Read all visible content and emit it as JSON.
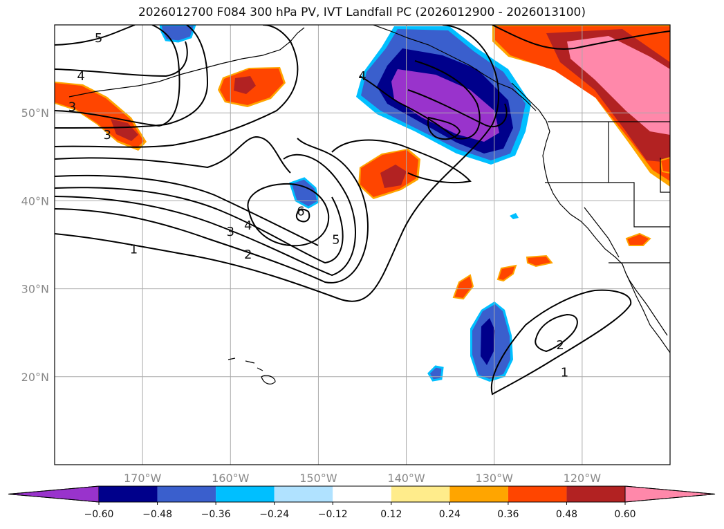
{
  "chart_data": {
    "type": "heatmap",
    "title": "2026012700 F084 300 hPa PV, IVT Landfall PC (2026012900 - 2026013100)",
    "projection": "lat-lon map, North Pacific",
    "xlim": [
      -180,
      -110
    ],
    "ylim": [
      10,
      60
    ],
    "x_ticks": [
      -170,
      -160,
      -150,
      -140,
      -130,
      -120
    ],
    "x_tick_labels": [
      "170°W",
      "160°W",
      "150°W",
      "140°W",
      "130°W",
      "120°W"
    ],
    "y_ticks": [
      20,
      30,
      40,
      50
    ],
    "y_tick_labels": [
      "20°N",
      "30°N",
      "40°N",
      "50°N"
    ],
    "grid": true,
    "contour_field": "300 hPa PV",
    "contour_labels": [
      {
        "text": "5",
        "lon": -175,
        "lat": 58.5
      },
      {
        "text": "4",
        "lon": -177,
        "lat": 54.2
      },
      {
        "text": "3",
        "lon": -178,
        "lat": 50.7
      },
      {
        "text": "3",
        "lon": -174,
        "lat": 47.5
      },
      {
        "text": "4",
        "lon": -145,
        "lat": 54.2
      },
      {
        "text": "6",
        "lon": -152,
        "lat": 38.8
      },
      {
        "text": "5",
        "lon": -148,
        "lat": 35.6
      },
      {
        "text": "4",
        "lon": -158,
        "lat": 37.2
      },
      {
        "text": "3",
        "lon": -160,
        "lat": 36.5
      },
      {
        "text": "2",
        "lon": -158,
        "lat": 33.9
      },
      {
        "text": "1",
        "lon": -171,
        "lat": 34.5
      },
      {
        "text": "2",
        "lon": -122.5,
        "lat": 23.6
      },
      {
        "text": "1",
        "lon": -122,
        "lat": 20.5
      }
    ],
    "shaded_field": "IVT landfall PC",
    "colorbar": {
      "boundaries": [
        -0.6,
        -0.48,
        -0.36,
        -0.24,
        -0.12,
        0.12,
        0.24,
        0.36,
        0.48,
        0.6
      ],
      "tick_labels": [
        "−0.60",
        "−0.48",
        "−0.36",
        "−0.24",
        "−0.12",
        "0.12",
        "0.24",
        "0.36",
        "0.48",
        "0.60"
      ],
      "colors": [
        "#9933cc",
        "#00008b",
        "#3a5fcd",
        "#00bfff",
        "#b0e2ff",
        "#ffffff",
        "#ffec8b",
        "#ffa500",
        "#ff4500",
        "#b22222",
        "#ff88aa"
      ],
      "extend": "both"
    }
  }
}
